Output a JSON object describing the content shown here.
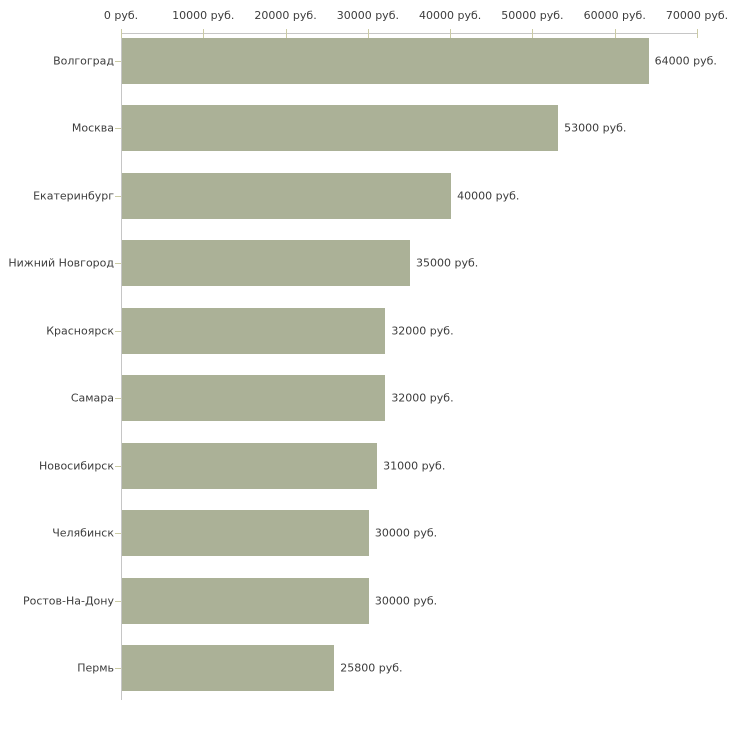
{
  "chart_data": {
    "type": "bar",
    "orientation": "horizontal",
    "title": "",
    "categories": [
      "Волгоград",
      "Москва",
      "Екатеринбург",
      "Нижний Новгород",
      "Красноярск",
      "Самара",
      "Новосибирск",
      "Челябинск",
      "Ростов-На-Дону",
      "Пермь"
    ],
    "values": [
      64000,
      53000,
      40000,
      35000,
      32000,
      32000,
      31000,
      30000,
      30000,
      25800
    ],
    "value_labels": [
      "64000 руб.",
      "53000 руб.",
      "40000 руб.",
      "35000 руб.",
      "32000 руб.",
      "32000 руб.",
      "31000 руб.",
      "30000 руб.",
      "30000 руб.",
      "25800 руб."
    ],
    "x_ticks": [
      0,
      10000,
      20000,
      30000,
      40000,
      50000,
      60000,
      70000
    ],
    "x_tick_labels": [
      "0 руб.",
      "10000 руб.",
      "20000 руб.",
      "30000 руб.",
      "40000 руб.",
      "50000 руб.",
      "60000 руб.",
      "70000 руб."
    ],
    "xlim": [
      0,
      70000
    ],
    "grid": false,
    "legend_position": "none",
    "axis_position": "top-left",
    "colors": {
      "bar": "#abb197",
      "axis": "#c6c6c6",
      "tick": "#cbcba4",
      "text": "#3d3d3d",
      "background": "#ffffff"
    }
  }
}
